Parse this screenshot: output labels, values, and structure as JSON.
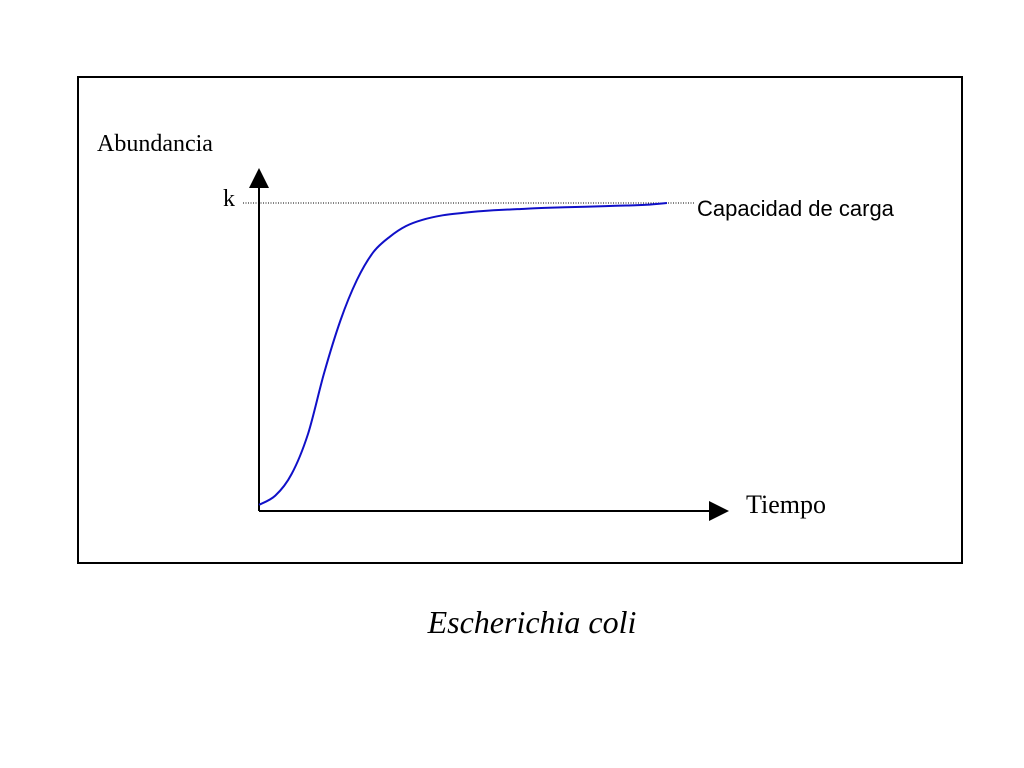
{
  "caption": "Escherichia coli",
  "chart_data": {
    "type": "line",
    "title": "",
    "ylabel": "Abundancia",
    "xlabel": "Tiempo",
    "ylim": [
      0,
      1.05
    ],
    "xlim": [
      0,
      10
    ],
    "x_ticks": [],
    "y_ticks": [],
    "grid": false,
    "legend": "none",
    "reference_line": {
      "tick_label": "k",
      "label": "Capacidad de carga",
      "value": 1.0,
      "style": "dotted"
    },
    "series": [
      {
        "color": "#1010c8",
        "x": [
          0,
          0.4,
          0.8,
          1.2,
          1.6,
          2.0,
          2.4,
          2.8,
          3.2,
          3.6,
          4.0,
          4.5,
          5.0,
          5.5,
          6.0,
          6.5,
          7.0,
          7.5,
          8.0,
          8.5,
          9.0,
          9.5,
          10.0
        ],
        "y": [
          0.02,
          0.05,
          0.12,
          0.25,
          0.45,
          0.62,
          0.75,
          0.84,
          0.89,
          0.925,
          0.945,
          0.96,
          0.968,
          0.974,
          0.978,
          0.981,
          0.984,
          0.986,
          0.988,
          0.99,
          0.992,
          0.994,
          1.0
        ]
      }
    ]
  }
}
